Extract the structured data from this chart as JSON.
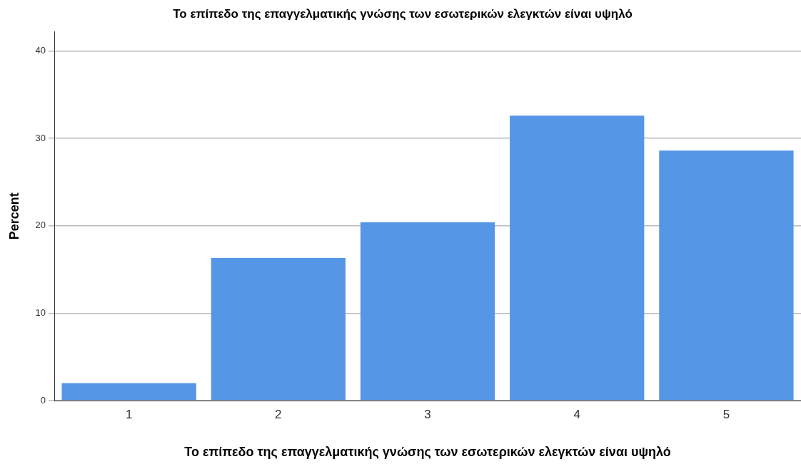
{
  "chart_data": {
    "type": "bar",
    "title": "Το επίπεδο της επαγγελματικής γνώσης των εσωτερικών ελεγκτών είναι υψηλό",
    "xlabel": "Το επίπεδο της επαγγελματικής γνώσης των εσωτερικών ελεγκτών είναι υψηλό",
    "ylabel": "Percent",
    "categories": [
      "1",
      "2",
      "3",
      "4",
      "5"
    ],
    "values": [
      2.0,
      16.3,
      20.4,
      32.6,
      28.6
    ],
    "color": "#5596e6",
    "ylim": [
      0,
      42.2
    ],
    "yticks": [
      0,
      10,
      20,
      30,
      40
    ],
    "grid": "y",
    "legend": false
  }
}
